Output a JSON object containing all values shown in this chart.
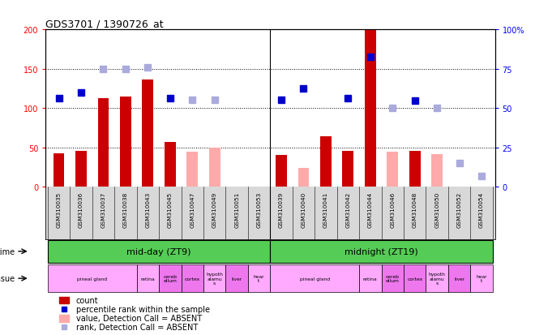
{
  "title": "GDS3701 / 1390726_at",
  "samples": [
    "GSM310035",
    "GSM310036",
    "GSM310037",
    "GSM310038",
    "GSM310043",
    "GSM310045",
    "GSM310047",
    "GSM310049",
    "GSM310051",
    "GSM310053",
    "GSM310039",
    "GSM310040",
    "GSM310041",
    "GSM310042",
    "GSM310044",
    "GSM310046",
    "GSM310048",
    "GSM310050",
    "GSM310052",
    "GSM310054"
  ],
  "count_values": [
    42,
    46,
    113,
    115,
    136,
    57,
    null,
    null,
    null,
    null,
    40,
    null,
    64,
    46,
    200,
    null,
    46,
    null,
    null,
    null
  ],
  "count_absent": [
    null,
    null,
    null,
    null,
    null,
    null,
    44,
    50,
    null,
    null,
    null,
    24,
    null,
    null,
    null,
    44,
    null,
    41,
    null,
    null
  ],
  "rank_present": [
    113,
    120,
    null,
    null,
    null,
    113,
    null,
    null,
    null,
    null,
    111,
    125,
    null,
    113,
    165,
    null,
    109,
    null,
    null,
    null
  ],
  "rank_absent": [
    null,
    null,
    150,
    150,
    152,
    null,
    110,
    110,
    null,
    null,
    null,
    null,
    null,
    null,
    null,
    100,
    null,
    100,
    30,
    13
  ],
  "ylim_left": [
    0,
    200
  ],
  "ylim_right": [
    0,
    100
  ],
  "yticks_left": [
    0,
    50,
    100,
    150,
    200
  ],
  "yticks_right": [
    0,
    25,
    50,
    75,
    100
  ],
  "ytick_labels_right": [
    "0",
    "25",
    "50",
    "75",
    "100%"
  ],
  "color_count": "#cc0000",
  "color_rank_present": "#0000cc",
  "color_count_absent": "#ffaaaa",
  "color_rank_absent": "#aaaadd",
  "bar_width": 0.5,
  "marker_size": 6,
  "bg_xtick": "#d8d8d8"
}
